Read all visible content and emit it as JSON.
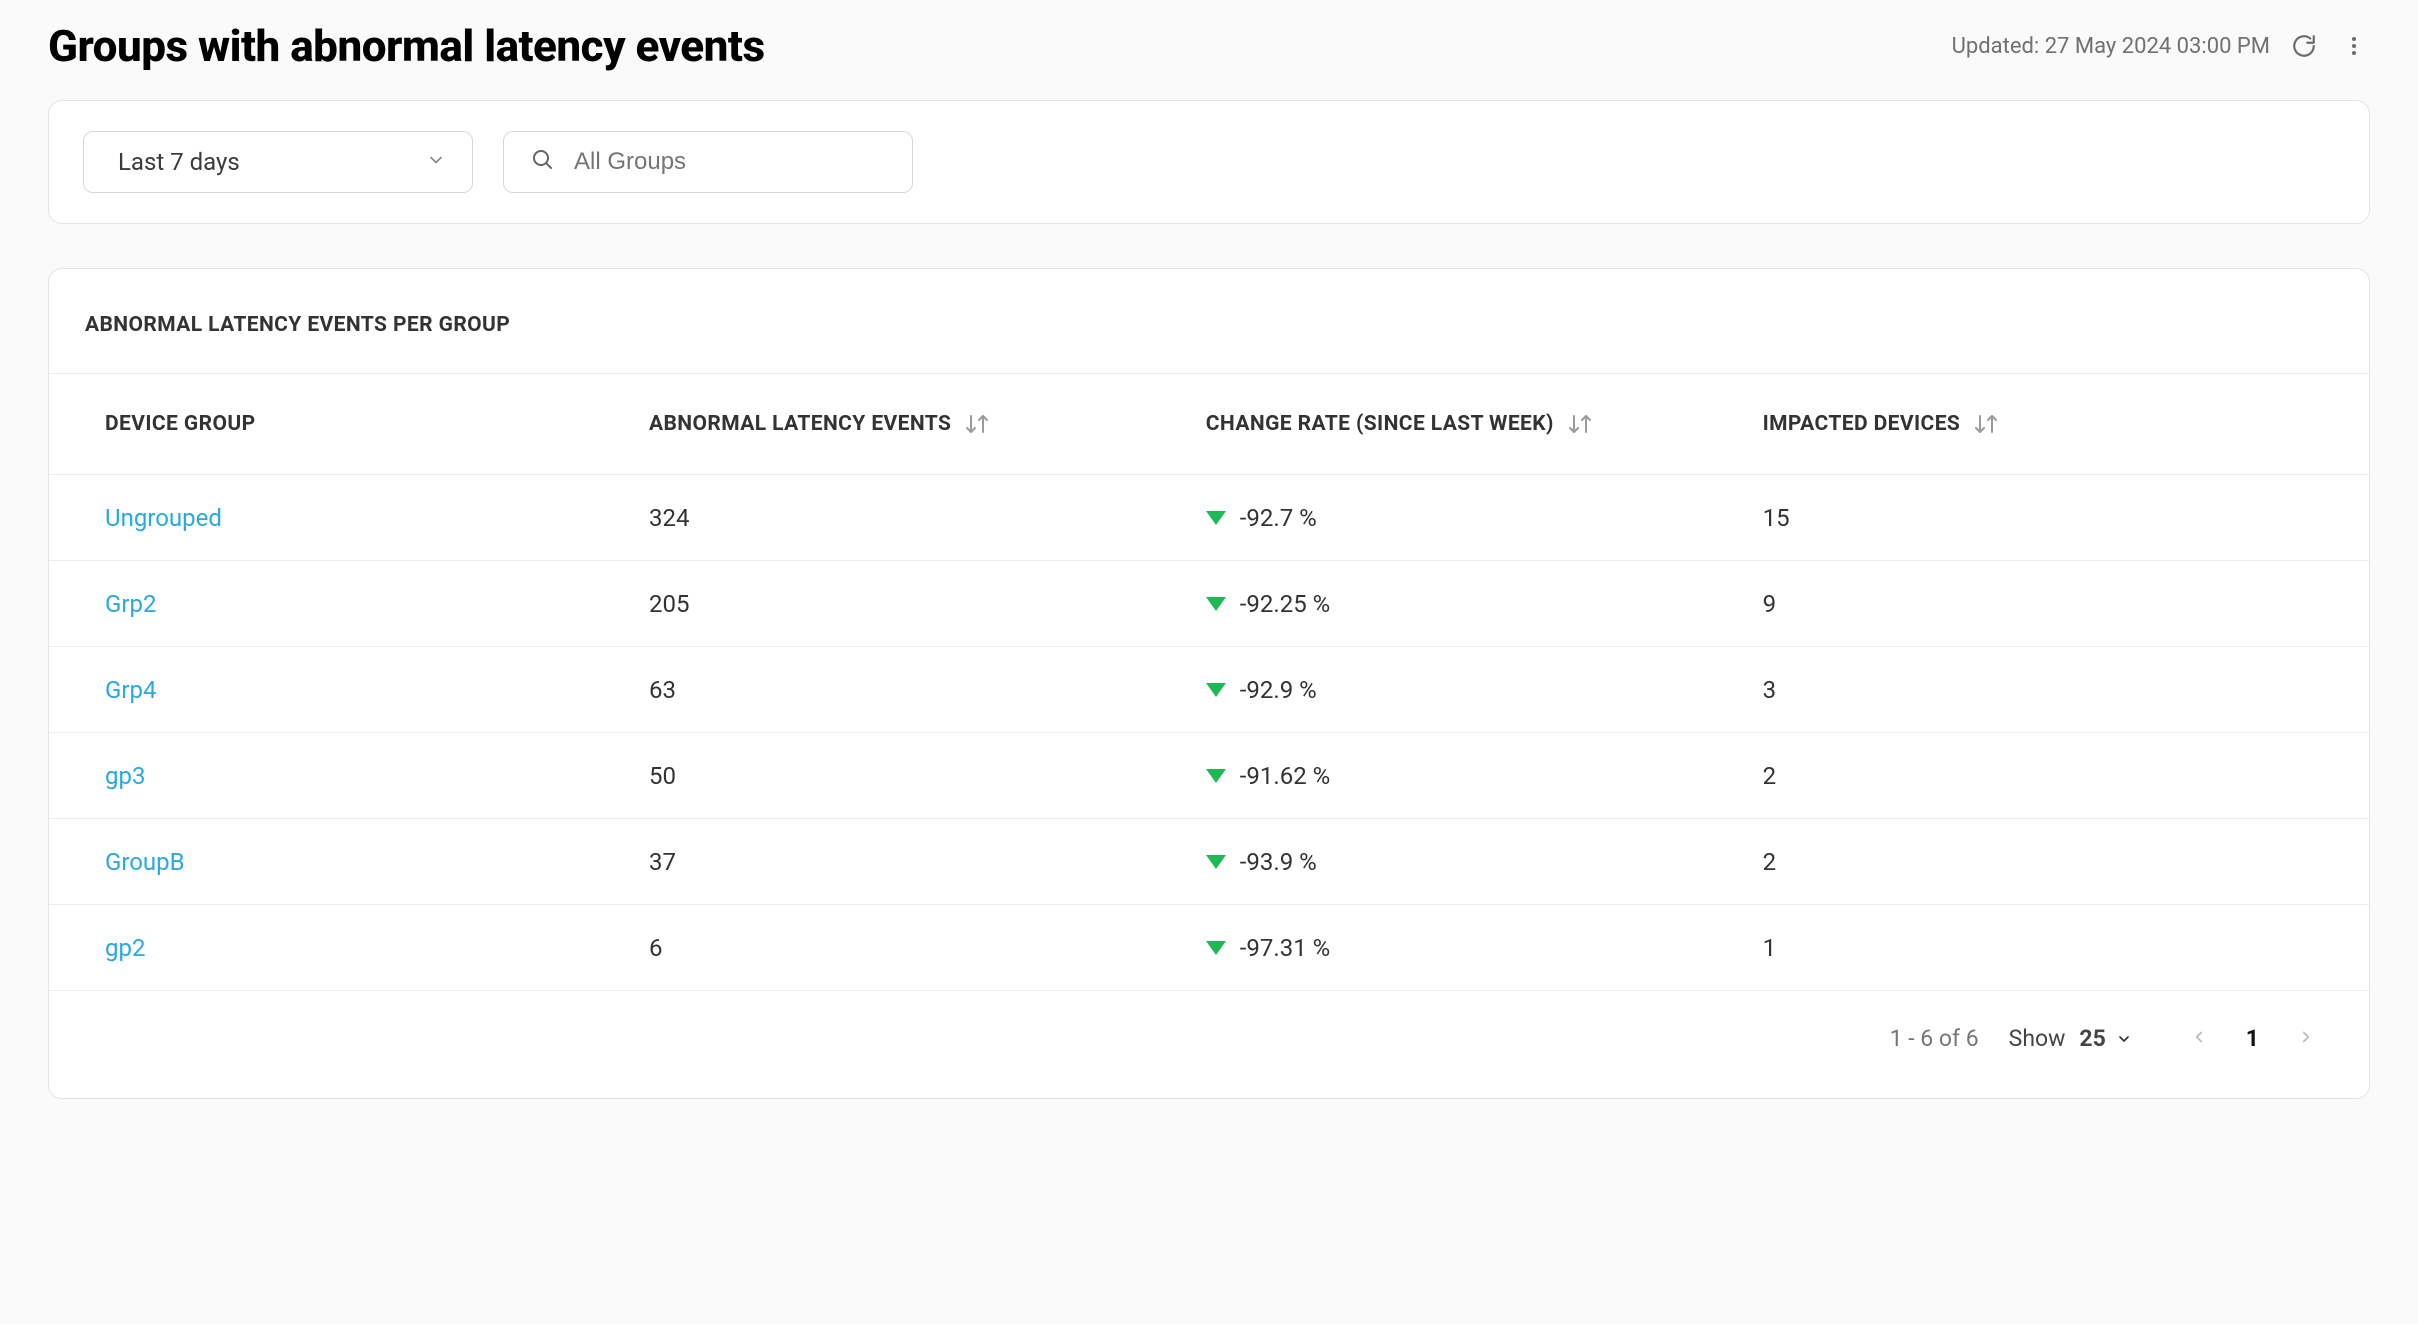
{
  "header": {
    "title": "Groups with abnormal latency events",
    "updated_prefix": "Updated: ",
    "updated_value": "27 May 2024 03:00 PM"
  },
  "filters": {
    "range_label": "Last 7 days",
    "search_placeholder": "All Groups"
  },
  "panel": {
    "title": "ABNORMAL LATENCY EVENTS PER GROUP"
  },
  "table": {
    "columns": {
      "group": "DEVICE GROUP",
      "events": "ABNORMAL LATENCY EVENTS",
      "change": "CHANGE RATE (SINCE LAST WEEK)",
      "impacted": "IMPACTED DEVICES"
    },
    "col_widths_pct": [
      25,
      24,
      24,
      27
    ],
    "link_color": "#2aa8e0",
    "down_triangle_color": "#1db954",
    "rows": [
      {
        "group": "Ungrouped",
        "events": "324",
        "change_dir": "down",
        "change": "-92.7 %",
        "impacted": "15"
      },
      {
        "group": "Grp2",
        "events": "205",
        "change_dir": "down",
        "change": "-92.25 %",
        "impacted": "9"
      },
      {
        "group": "Grp4",
        "events": "63",
        "change_dir": "down",
        "change": "-92.9 %",
        "impacted": "3"
      },
      {
        "group": "gp3",
        "events": "50",
        "change_dir": "down",
        "change": "-91.62 %",
        "impacted": "2"
      },
      {
        "group": "GroupB",
        "events": "37",
        "change_dir": "down",
        "change": "-93.9 %",
        "impacted": "2"
      },
      {
        "group": "gp2",
        "events": "6",
        "change_dir": "down",
        "change": "-97.31 %",
        "impacted": "1"
      }
    ]
  },
  "footer": {
    "count_text": "1 - 6 of 6",
    "show_label": "Show",
    "page_size": "25",
    "current_page": "1"
  },
  "colors": {
    "page_bg": "#fafafa",
    "card_bg": "#ffffff",
    "border": "#e4e4e4",
    "text": "#333333",
    "muted": "#777777"
  }
}
